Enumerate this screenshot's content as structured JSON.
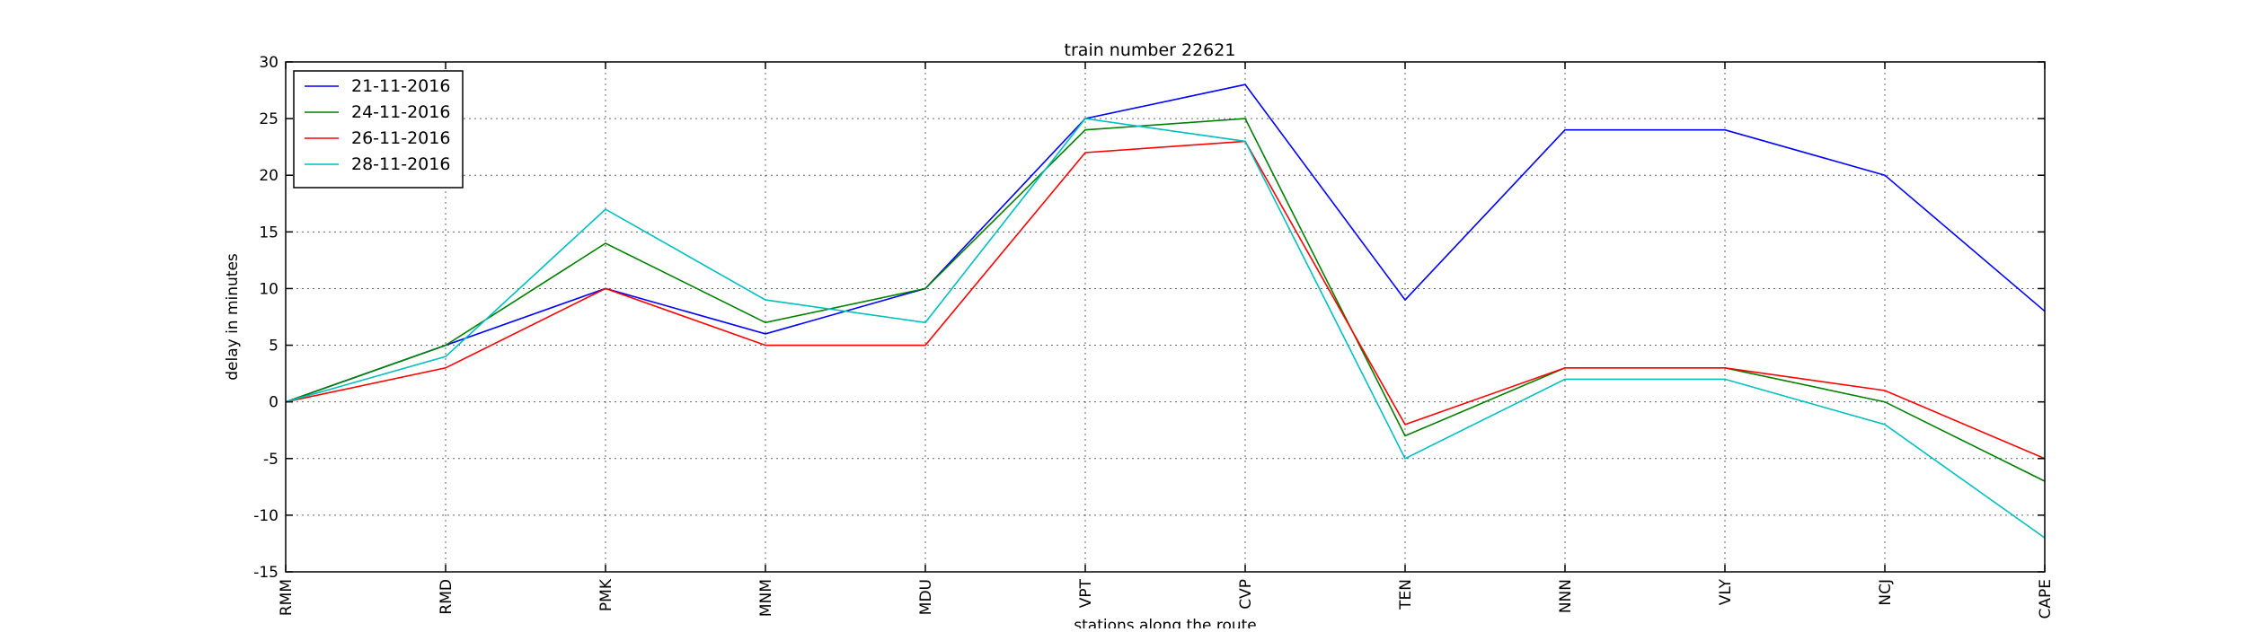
{
  "chart_data": {
    "type": "line",
    "title": "train number 22621",
    "xlabel": "stations along the route",
    "ylabel": "delay in minutes",
    "categories": [
      "RMM",
      "RMD",
      "PMK",
      "MNM",
      "MDU",
      "VPT",
      "CVP",
      "TEN",
      "NNN",
      "VLY",
      "NCJ",
      "CAPE"
    ],
    "ylim": [
      -15,
      30
    ],
    "yticks": [
      -15,
      -10,
      -5,
      0,
      5,
      10,
      15,
      20,
      25,
      30
    ],
    "grid": true,
    "legend_position": "top-left",
    "series": [
      {
        "name": "21-11-2016",
        "color": "#0000ff",
        "values": [
          0,
          5,
          10,
          6,
          10,
          25,
          28,
          9,
          24,
          24,
          20,
          8
        ]
      },
      {
        "name": "24-11-2016",
        "color": "#008000",
        "values": [
          0,
          5,
          14,
          7,
          10,
          24,
          25,
          -3,
          3,
          3,
          0,
          -7
        ]
      },
      {
        "name": "26-11-2016",
        "color": "#ff0000",
        "values": [
          0,
          3,
          10,
          5,
          5,
          22,
          23,
          -2,
          3,
          3,
          1,
          -5
        ]
      },
      {
        "name": "28-11-2016",
        "color": "#00bfbf",
        "values": [
          0,
          4,
          17,
          9,
          7,
          25,
          23,
          -5,
          2,
          2,
          -2,
          -12
        ]
      }
    ]
  }
}
